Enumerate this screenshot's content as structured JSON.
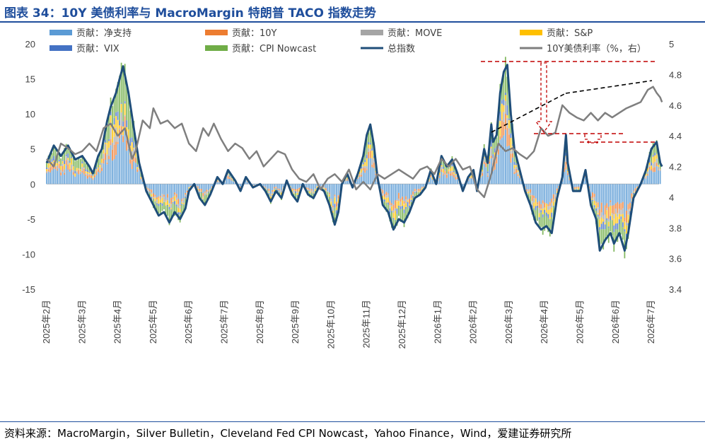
{
  "header": {
    "title": "图表 34：10Y 美债利率与 MacroMargin 特朗普 TACO 指数走势"
  },
  "footer": {
    "source": "资料来源：MacroMargin，Silver Bulletin，Cleveland Fed CPI Nowcast，Yahoo Finance，Wind，爱建证券研究所"
  },
  "colors": {
    "net_support": "#5b9bd5",
    "y10": "#ed7d31",
    "move": "#a5a5a5",
    "sp": "#ffc000",
    "vix": "#4472c4",
    "cpi": "#70ad47",
    "total": "#1f4e79",
    "yield": "#7f7f7f",
    "annotation_red": "#c00000",
    "annotation_black": "#000000",
    "title_blue": "#1f4e9c"
  },
  "chart_data": {
    "type": "bar",
    "legend": [
      {
        "key": "net_support",
        "label": "贡献：净支持",
        "kind": "bar"
      },
      {
        "key": "y10",
        "label": "贡献：10Y",
        "kind": "bar"
      },
      {
        "key": "move",
        "label": "贡献：MOVE",
        "kind": "bar"
      },
      {
        "key": "sp",
        "label": "贡献：S&P",
        "kind": "bar"
      },
      {
        "key": "vix",
        "label": "贡献：VIX",
        "kind": "bar"
      },
      {
        "key": "cpi",
        "label": "贡献：CPI Nowcast",
        "kind": "bar"
      },
      {
        "key": "total",
        "label": "总指数",
        "kind": "line"
      },
      {
        "key": "yield",
        "label": "10Y美债利率（%，右）",
        "kind": "line"
      }
    ],
    "x_axis": {
      "labels": [
        "2025年2月",
        "2025年3月",
        "2025年4月",
        "2025年5月",
        "2025年6月",
        "2025年7月",
        "2025年8月",
        "2025年9月",
        "2025年10月",
        "2025年11月",
        "2025年12月",
        "2026年1月",
        "2026年2月",
        "2026年3月",
        "2026年4月",
        "2026年5月",
        "2026年6月",
        "2026年7月"
      ]
    },
    "y_left": {
      "ticks": [
        20,
        15,
        10,
        5,
        0,
        -5,
        -10,
        -15
      ],
      "min": -15,
      "max": 20
    },
    "y_right": {
      "ticks": [
        4.8,
        4.6,
        4.4,
        4.2,
        4,
        3.8,
        3.6,
        3.4
      ],
      "min": 3.4,
      "max": 5.0,
      "top_label": "5"
    },
    "total_index": [
      [
        0,
        3
      ],
      [
        0.2,
        5.5
      ],
      [
        0.4,
        4
      ],
      [
        0.6,
        5.5
      ],
      [
        0.8,
        3.5
      ],
      [
        1.0,
        4
      ],
      [
        1.2,
        2.5
      ],
      [
        1.3,
        1.5
      ],
      [
        1.45,
        4
      ],
      [
        1.55,
        5
      ],
      [
        1.7,
        9
      ],
      [
        1.8,
        11
      ],
      [
        1.95,
        13
      ],
      [
        2.05,
        15
      ],
      [
        2.15,
        16.8
      ],
      [
        2.3,
        13
      ],
      [
        2.45,
        8
      ],
      [
        2.6,
        3
      ],
      [
        2.8,
        -1
      ],
      [
        3.0,
        -3
      ],
      [
        3.15,
        -4.5
      ],
      [
        3.3,
        -4
      ],
      [
        3.45,
        -5.5
      ],
      [
        3.6,
        -4
      ],
      [
        3.75,
        -5
      ],
      [
        3.9,
        -3.5
      ],
      [
        4.0,
        -1
      ],
      [
        4.15,
        0
      ],
      [
        4.3,
        -2
      ],
      [
        4.45,
        -3
      ],
      [
        4.6,
        -1.5
      ],
      [
        4.8,
        1
      ],
      [
        4.95,
        0
      ],
      [
        5.1,
        2
      ],
      [
        5.3,
        0.5
      ],
      [
        5.45,
        -1
      ],
      [
        5.6,
        1
      ],
      [
        5.8,
        -0.5
      ],
      [
        6.0,
        0
      ],
      [
        6.15,
        -1
      ],
      [
        6.3,
        -2.5
      ],
      [
        6.45,
        -1
      ],
      [
        6.6,
        -2
      ],
      [
        6.75,
        0.5
      ],
      [
        6.9,
        -1.5
      ],
      [
        7.05,
        -2.5
      ],
      [
        7.2,
        0
      ],
      [
        7.35,
        -1.5
      ],
      [
        7.5,
        -2
      ],
      [
        7.65,
        -0.5
      ],
      [
        7.8,
        -1
      ],
      [
        7.95,
        -3
      ],
      [
        8.1,
        -5.8
      ],
      [
        8.2,
        -4
      ],
      [
        8.3,
        0
      ],
      [
        8.45,
        1.5
      ],
      [
        8.6,
        -0.5
      ],
      [
        8.75,
        1.5
      ],
      [
        8.9,
        4
      ],
      [
        9.0,
        7
      ],
      [
        9.1,
        8.5
      ],
      [
        9.2,
        5.5
      ],
      [
        9.3,
        1
      ],
      [
        9.45,
        -3
      ],
      [
        9.6,
        -4
      ],
      [
        9.75,
        -6.5
      ],
      [
        9.9,
        -5
      ],
      [
        10.05,
        -5.5
      ],
      [
        10.2,
        -4
      ],
      [
        10.35,
        -2
      ],
      [
        10.5,
        -1.5
      ],
      [
        10.65,
        -0.5
      ],
      [
        10.8,
        2
      ],
      [
        10.95,
        0
      ],
      [
        11.1,
        4
      ],
      [
        11.25,
        2.5
      ],
      [
        11.4,
        3.5
      ],
      [
        11.55,
        1.5
      ],
      [
        11.7,
        -1
      ],
      [
        11.85,
        1
      ],
      [
        12.0,
        2
      ],
      [
        12.1,
        -1
      ],
      [
        12.2,
        2
      ],
      [
        12.3,
        5
      ],
      [
        12.4,
        3
      ],
      [
        12.5,
        8.5
      ],
      [
        12.55,
        6
      ],
      [
        12.65,
        7
      ],
      [
        12.75,
        13
      ],
      [
        12.85,
        16
      ],
      [
        12.95,
        17
      ],
      [
        13.05,
        10
      ],
      [
        13.15,
        5
      ],
      [
        13.3,
        2
      ],
      [
        13.45,
        -1
      ],
      [
        13.6,
        -3
      ],
      [
        13.75,
        -5.5
      ],
      [
        13.9,
        -6.5
      ],
      [
        14.05,
        -6
      ],
      [
        14.2,
        -7
      ],
      [
        14.35,
        -2
      ],
      [
        14.5,
        1
      ],
      [
        14.6,
        7
      ],
      [
        14.65,
        3
      ],
      [
        14.8,
        -1
      ],
      [
        15.0,
        -1
      ],
      [
        15.15,
        2
      ],
      [
        15.3,
        -3
      ],
      [
        15.45,
        -5
      ],
      [
        15.55,
        -9.5
      ],
      [
        15.7,
        -8
      ],
      [
        15.85,
        -7
      ],
      [
        15.95,
        -8.5
      ],
      [
        16.1,
        -7
      ],
      [
        16.25,
        -9.5
      ],
      [
        16.35,
        -7
      ],
      [
        16.5,
        -2
      ],
      [
        16.7,
        0
      ],
      [
        16.85,
        2
      ],
      [
        17.0,
        5
      ],
      [
        17.15,
        6
      ],
      [
        17.25,
        3
      ],
      [
        17.3,
        2.5
      ]
    ],
    "yield_10y": [
      [
        0,
        4.25
      ],
      [
        0.2,
        4.2
      ],
      [
        0.4,
        4.35
      ],
      [
        0.6,
        4.32
      ],
      [
        0.8,
        4.28
      ],
      [
        1.0,
        4.3
      ],
      [
        1.2,
        4.35
      ],
      [
        1.4,
        4.3
      ],
      [
        1.6,
        4.45
      ],
      [
        1.8,
        4.48
      ],
      [
        2.0,
        4.4
      ],
      [
        2.2,
        4.45
      ],
      [
        2.4,
        4.25
      ],
      [
        2.5,
        4.3
      ],
      [
        2.7,
        4.5
      ],
      [
        2.9,
        4.45
      ],
      [
        3.0,
        4.58
      ],
      [
        3.2,
        4.48
      ],
      [
        3.4,
        4.5
      ],
      [
        3.6,
        4.45
      ],
      [
        3.8,
        4.48
      ],
      [
        4.0,
        4.35
      ],
      [
        4.2,
        4.3
      ],
      [
        4.4,
        4.45
      ],
      [
        4.55,
        4.4
      ],
      [
        4.7,
        4.48
      ],
      [
        4.9,
        4.38
      ],
      [
        5.1,
        4.3
      ],
      [
        5.3,
        4.35
      ],
      [
        5.5,
        4.32
      ],
      [
        5.7,
        4.25
      ],
      [
        5.9,
        4.3
      ],
      [
        6.1,
        4.2
      ],
      [
        6.3,
        4.25
      ],
      [
        6.5,
        4.3
      ],
      [
        6.7,
        4.28
      ],
      [
        6.9,
        4.18
      ],
      [
        7.1,
        4.12
      ],
      [
        7.3,
        4.1
      ],
      [
        7.5,
        4.15
      ],
      [
        7.7,
        4.05
      ],
      [
        7.9,
        4.12
      ],
      [
        8.1,
        4.15
      ],
      [
        8.3,
        4.1
      ],
      [
        8.5,
        4.18
      ],
      [
        8.7,
        4.05
      ],
      [
        8.9,
        4.1
      ],
      [
        9.1,
        4.05
      ],
      [
        9.3,
        4.15
      ],
      [
        9.5,
        4.12
      ],
      [
        9.7,
        4.15
      ],
      [
        9.9,
        4.18
      ],
      [
        10.1,
        4.15
      ],
      [
        10.3,
        4.12
      ],
      [
        10.5,
        4.18
      ],
      [
        10.7,
        4.2
      ],
      [
        10.9,
        4.15
      ],
      [
        11.1,
        4.25
      ],
      [
        11.3,
        4.2
      ],
      [
        11.5,
        4.25
      ],
      [
        11.7,
        4.18
      ],
      [
        11.9,
        4.2
      ],
      [
        12.1,
        4.05
      ],
      [
        12.3,
        4.0
      ],
      [
        12.5,
        4.15
      ],
      [
        12.7,
        4.35
      ],
      [
        12.9,
        4.3
      ],
      [
        13.1,
        4.32
      ],
      [
        13.3,
        4.28
      ],
      [
        13.5,
        4.25
      ],
      [
        13.7,
        4.3
      ],
      [
        13.9,
        4.45
      ],
      [
        14.1,
        4.4
      ],
      [
        14.3,
        4.42
      ],
      [
        14.5,
        4.6
      ],
      [
        14.7,
        4.55
      ],
      [
        14.9,
        4.52
      ],
      [
        15.1,
        4.5
      ],
      [
        15.3,
        4.55
      ],
      [
        15.5,
        4.5
      ],
      [
        15.7,
        4.55
      ],
      [
        15.9,
        4.52
      ],
      [
        16.1,
        4.55
      ],
      [
        16.3,
        4.58
      ],
      [
        16.5,
        4.6
      ],
      [
        16.7,
        4.62
      ],
      [
        16.9,
        4.7
      ],
      [
        17.05,
        4.72
      ],
      [
        17.15,
        4.68
      ],
      [
        17.25,
        4.65
      ],
      [
        17.3,
        4.62
      ]
    ],
    "stacked_bars_note": "Stacked daily contribution bars; each column splits the total index across the six components."
  }
}
